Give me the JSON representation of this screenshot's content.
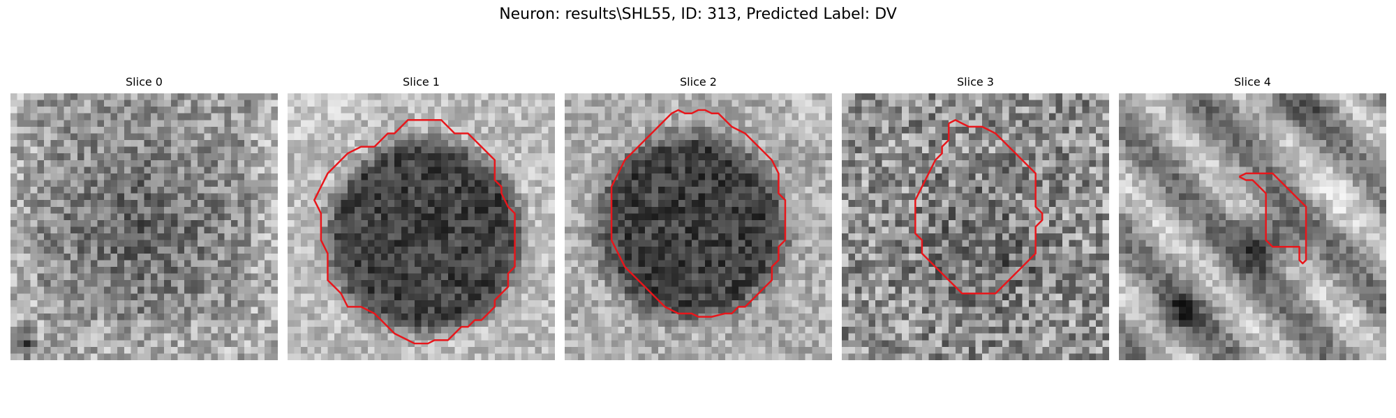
{
  "figure": {
    "title": "Neuron: results\\SHL55, ID: 313, Predicted Label: DV"
  },
  "colors": {
    "contour": "#e8161b",
    "colormap": "grayscale"
  },
  "slices": [
    {
      "title": "Slice 0",
      "has_contour": false,
      "icon": "grayscale-microscopy-image"
    },
    {
      "title": "Slice 1",
      "has_contour": true,
      "icon": "grayscale-microscopy-image"
    },
    {
      "title": "Slice 2",
      "has_contour": true,
      "icon": "grayscale-microscopy-image"
    },
    {
      "title": "Slice 3",
      "has_contour": true,
      "icon": "grayscale-microscopy-image"
    },
    {
      "title": "Slice 4",
      "has_contour": true,
      "icon": "grayscale-microscopy-image"
    }
  ]
}
